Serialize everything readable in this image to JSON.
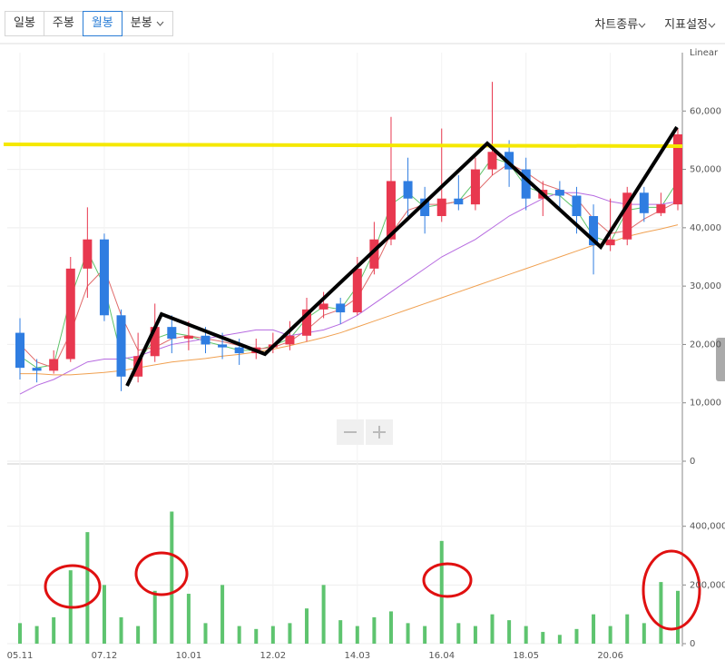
{
  "toolbar": {
    "tabs": [
      "일봉",
      "주봉",
      "월봉",
      "분봉"
    ],
    "menus": [
      "차트종류",
      "지표설정"
    ]
  },
  "chart_data": {
    "type": "candlestick",
    "scale_label": "Linear",
    "categories": [
      "05.11",
      null,
      null,
      null,
      null,
      "07.12",
      null,
      null,
      null,
      null,
      "10.01",
      null,
      null,
      null,
      null,
      "12.02",
      null,
      null,
      null,
      null,
      "14.03",
      null,
      null,
      null,
      null,
      "16.04",
      null,
      null,
      null,
      null,
      "18.05",
      null,
      null,
      null,
      null,
      "20.06",
      null,
      null,
      null,
      null
    ],
    "open": [
      22000,
      16000,
      15500,
      17500,
      33000,
      38000,
      25000,
      14500,
      18000,
      23000,
      21000,
      21500,
      20000,
      19500,
      18500,
      19500,
      20000,
      21500,
      26000,
      27000,
      25500,
      33000,
      38000,
      48000,
      45000,
      42000,
      45000,
      44000,
      50000,
      53000,
      50000,
      45000,
      46500,
      45500,
      42000,
      37000,
      38000,
      46000,
      42500,
      44000
    ],
    "high": [
      24500,
      17500,
      19000,
      35000,
      43500,
      39000,
      26000,
      22000,
      27000,
      25000,
      24000,
      23000,
      22000,
      21000,
      21000,
      22000,
      24000,
      28000,
      29000,
      28000,
      35000,
      41000,
      59000,
      52000,
      47000,
      57000,
      49000,
      52000,
      65000,
      55000,
      52000,
      48000,
      48000,
      47000,
      44000,
      45000,
      47000,
      47000,
      46000,
      57000
    ],
    "low": [
      14000,
      13500,
      15000,
      17000,
      28000,
      24000,
      12000,
      13500,
      17000,
      18500,
      19000,
      18500,
      17500,
      16500,
      17500,
      18500,
      19000,
      20500,
      24500,
      23500,
      25000,
      32000,
      37000,
      42000,
      39000,
      41000,
      43000,
      43000,
      49000,
      47000,
      43000,
      42000,
      43000,
      39000,
      32000,
      36000,
      37000,
      41000,
      42000,
      43000
    ],
    "close": [
      16000,
      15500,
      17500,
      33000,
      38000,
      25000,
      14500,
      18000,
      23000,
      21000,
      21500,
      20000,
      19500,
      18500,
      19500,
      20000,
      21500,
      26000,
      27000,
      25500,
      33000,
      38000,
      48000,
      45000,
      42000,
      45000,
      44000,
      50000,
      53000,
      50000,
      45000,
      46500,
      45500,
      42000,
      37000,
      38000,
      46000,
      42500,
      44000,
      56000
    ],
    "up_color": "#e8384f",
    "down_color": "#2f7de1",
    "series": [
      {
        "color": "#5fc46a",
        "values": [
          18000,
          16000,
          16500,
          28000,
          36000,
          30000,
          18000,
          17000,
          21000,
          22000,
          21500,
          20500,
          19800,
          19000,
          19000,
          19800,
          21000,
          24500,
          26500,
          26000,
          30000,
          36000,
          44000,
          46000,
          43500,
          44000,
          44500,
          48000,
          52000,
          51000,
          47000,
          46000,
          45500,
          43000,
          38500,
          37500,
          43000,
          43500,
          43500,
          48000
        ]
      },
      {
        "color": "#e06a6a",
        "values": [
          20000,
          17000,
          16000,
          22000,
          30000,
          33000,
          25000,
          19000,
          19500,
          21000,
          21500,
          21000,
          20500,
          19800,
          19200,
          19500,
          20500,
          22500,
          25000,
          26000,
          28000,
          33000,
          39000,
          43000,
          44000,
          44000,
          44500,
          46000,
          49000,
          51000,
          49500,
          47500,
          46500,
          45000,
          41500,
          39000,
          39500,
          41500,
          43000,
          44500
        ]
      },
      {
        "color": "#b66ae0",
        "values": [
          11500,
          13000,
          14000,
          15500,
          17000,
          17500,
          17500,
          18000,
          19000,
          20000,
          20500,
          21000,
          21500,
          22000,
          22500,
          22500,
          21500,
          22000,
          22500,
          23500,
          25000,
          27000,
          29000,
          31000,
          33000,
          35000,
          36500,
          38000,
          40000,
          42000,
          43500,
          45000,
          46000,
          46000,
          45500,
          44500,
          44000,
          44000,
          44000,
          44500
        ]
      },
      {
        "color": "#f0a050",
        "values": [
          15000,
          15000,
          14800,
          14800,
          15000,
          15200,
          15500,
          16000,
          16500,
          17000,
          17300,
          17600,
          18000,
          18300,
          18700,
          19200,
          19800,
          20500,
          21200,
          22000,
          23000,
          24000,
          25000,
          26000,
          27000,
          28000,
          29000,
          30000,
          31000,
          32000,
          33000,
          34000,
          35000,
          36000,
          37000,
          37500,
          38500,
          39200,
          39800,
          40500
        ]
      }
    ],
    "ylim": [
      0,
      70000
    ],
    "yticks": [
      0,
      {
        "value": 10000,
        "label": "10,000"
      },
      {
        "value": 20000,
        "label": "20,000"
      },
      {
        "value": 30000,
        "label": "30,000"
      },
      {
        "value": 40000,
        "label": "40,000"
      },
      {
        "value": 50000,
        "label": "50,000"
      },
      {
        "value": 60000,
        "label": "60,000"
      }
    ],
    "grid": true,
    "volume": {
      "color": "#5ec46f",
      "values": [
        70000,
        60000,
        90000,
        250000,
        380000,
        200000,
        90000,
        60000,
        180000,
        450000,
        170000,
        70000,
        200000,
        60000,
        50000,
        60000,
        70000,
        120000,
        200000,
        80000,
        60000,
        90000,
        110000,
        70000,
        60000,
        350000,
        70000,
        60000,
        100000,
        80000,
        60000,
        40000,
        30000,
        50000,
        100000,
        60000,
        100000,
        70000,
        210000,
        180000
      ],
      "ylim": [
        0,
        600000
      ],
      "yticks": [
        0,
        {
          "value": 200000,
          "label": "200,000"
        },
        {
          "value": 400000,
          "label": "400,000"
        }
      ]
    }
  }
}
